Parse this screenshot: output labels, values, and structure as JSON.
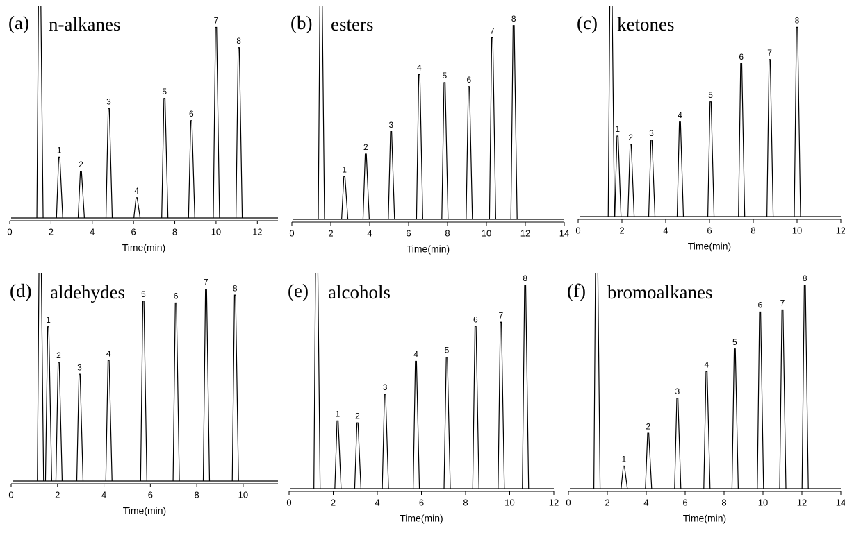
{
  "chart_data": [
    {
      "type": "line",
      "label": "(a)",
      "title": "n-alkanes",
      "xlabel": "Time(min)",
      "xlim": [
        0,
        13
      ],
      "xticks": [
        0,
        2,
        4,
        6,
        8,
        10,
        12
      ],
      "ylim": [
        0,
        100
      ],
      "x": [
        1.45,
        2.4,
        3.45,
        4.8,
        6.15,
        7.5,
        8.8,
        10.0,
        11.1
      ],
      "values": [
        110,
        30,
        23,
        54,
        10,
        59,
        48,
        94,
        84
      ],
      "peak_labels": [
        null,
        "1",
        "2",
        "3",
        "4",
        "5",
        "6",
        "7",
        "8"
      ],
      "color": "#000000"
    },
    {
      "type": "line",
      "label": "(b)",
      "title": "esters",
      "xlabel": "Time(min)",
      "xlim": [
        0,
        14
      ],
      "xticks": [
        0,
        2,
        4,
        6,
        8,
        10,
        12,
        14
      ],
      "ylim": [
        0,
        100
      ],
      "x": [
        1.5,
        2.7,
        3.8,
        5.1,
        6.55,
        7.85,
        9.1,
        10.3,
        11.4
      ],
      "values": [
        110,
        21,
        32,
        43,
        71,
        67,
        65,
        89,
        95
      ],
      "peak_labels": [
        null,
        "1",
        "2",
        "3",
        "4",
        "5",
        "6",
        "7",
        "8"
      ],
      "color": "#000000"
    },
    {
      "type": "line",
      "label": "(c)",
      "title": "ketones",
      "xlabel": "Time(min)",
      "xlim": [
        0,
        12
      ],
      "xticks": [
        0,
        2,
        4,
        6,
        8,
        10,
        12
      ],
      "ylim": [
        0,
        100
      ],
      "x": [
        1.5,
        1.8,
        2.4,
        3.35,
        4.65,
        6.05,
        7.45,
        8.75,
        10.0
      ],
      "values": [
        110,
        40,
        36,
        38,
        47,
        57,
        76,
        78,
        94
      ],
      "peak_labels": [
        null,
        "1",
        "2",
        "3",
        "4",
        "5",
        "6",
        "7",
        "8"
      ],
      "color": "#000000"
    },
    {
      "type": "line",
      "label": "(d)",
      "title": "aldehydes",
      "xlabel": "Time(min)",
      "xlim": [
        0,
        11.5
      ],
      "xticks": [
        0,
        2,
        4,
        6,
        8,
        10
      ],
      "ylim": [
        0,
        100
      ],
      "x": [
        1.25,
        1.6,
        2.05,
        2.95,
        4.2,
        5.7,
        7.1,
        8.4,
        9.65
      ],
      "values": [
        110,
        78,
        60,
        54,
        61,
        91,
        90,
        97,
        94
      ],
      "peak_labels": [
        null,
        "1",
        "2",
        "3",
        "4",
        "5",
        "6",
        "7",
        "8"
      ],
      "color": "#000000"
    },
    {
      "type": "line",
      "label": "(e)",
      "title": "alcohols",
      "xlabel": "Time(min)",
      "xlim": [
        0,
        12
      ],
      "xticks": [
        0,
        2,
        4,
        6,
        8,
        10,
        12
      ],
      "ylim": [
        0,
        100
      ],
      "x": [
        1.25,
        2.2,
        3.1,
        4.35,
        5.75,
        7.15,
        8.45,
        9.6,
        10.7
      ],
      "values": [
        110,
        33,
        32,
        46,
        62,
        64,
        79,
        81,
        99
      ],
      "peak_labels": [
        null,
        "1",
        "2",
        "3",
        "4",
        "5",
        "6",
        "7",
        "8"
      ],
      "color": "#000000"
    },
    {
      "type": "line",
      "label": "(f)",
      "title": "bromoalkanes",
      "xlabel": "Time(min)",
      "xlim": [
        0,
        14
      ],
      "xticks": [
        0,
        2,
        4,
        6,
        8,
        10,
        12,
        14
      ],
      "ylim": [
        0,
        100
      ],
      "x": [
        1.45,
        2.85,
        4.1,
        5.6,
        7.1,
        8.55,
        9.85,
        11.0,
        12.15
      ],
      "values": [
        110,
        11,
        27,
        44,
        57,
        68,
        86,
        87,
        99
      ],
      "peak_labels": [
        null,
        "1",
        "2",
        "3",
        "4",
        "5",
        "6",
        "7",
        "8"
      ],
      "color": "#000000"
    }
  ]
}
